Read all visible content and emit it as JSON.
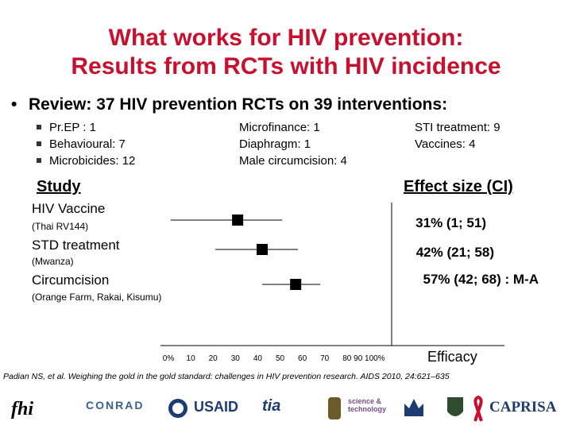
{
  "title": {
    "line1": "What works for HIV prevention:",
    "line2": "Results from RCTs with HIV incidence"
  },
  "review": {
    "bullet": "•",
    "text": "Review: 37 HIV prevention RCTs on 39 interventions:"
  },
  "intervention_columns": [
    [
      "Pr.EP : 1",
      "Behavioural: 7",
      "Microbicides: 12"
    ],
    [
      "Microfinance: 1",
      "Diaphragm: 1",
      "Male circumcision: 4"
    ],
    [
      "STI treatment: 9",
      "Vaccines: 4"
    ]
  ],
  "headers": {
    "study": "Study",
    "effect": "Effect size (CI)"
  },
  "studies": [
    {
      "name": "HIV Vaccine",
      "detail": "(Thai RV144)",
      "effect_text": "31% (1; 51)"
    },
    {
      "name": "STD treatment",
      "detail": "(Mwanza)",
      "effect_text": "42% (21; 58)"
    },
    {
      "name": "Circumcision",
      "detail": "(Orange Farm, Rakai, Kisumu)",
      "effect_text": "57% (42; 68) : M-A"
    }
  ],
  "chart_data": {
    "type": "scatter",
    "xlabel": "Efficacy",
    "xlim": [
      0,
      100
    ],
    "ticks": [
      "0%",
      "10",
      "20",
      "30",
      "40",
      "50",
      "60",
      "70",
      "80",
      "90 100%"
    ],
    "points": [
      {
        "name": "HIV Vaccine",
        "estimate": 31,
        "lower": 1,
        "upper": 51
      },
      {
        "name": "STD treatment",
        "estimate": 42,
        "lower": 21,
        "upper": 58
      },
      {
        "name": "Circumcision",
        "estimate": 57,
        "lower": 42,
        "upper": 68
      }
    ]
  },
  "citation": "Padian NS, et al. Weighing the gold in the gold standard: challenges in HIV prevention research. AIDS 2010, 24:621–635",
  "logos": [
    "fhi",
    "CONRAD",
    "USAID",
    "tia",
    "science & technology",
    "CAPRISA"
  ]
}
